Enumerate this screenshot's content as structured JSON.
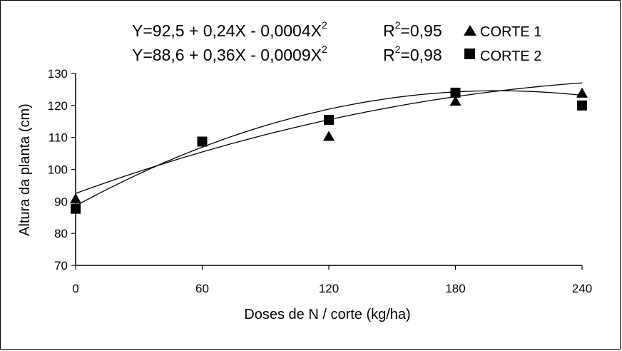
{
  "chart_data": {
    "type": "scatter",
    "xlabel": "Doses de N / corte (kg/ha)",
    "ylabel": "Altura da planta (cm)",
    "xlim": [
      0,
      240
    ],
    "ylim": [
      70,
      130
    ],
    "xticks": [
      "0",
      "60",
      "120",
      "180",
      "240"
    ],
    "yticks": [
      "70",
      "80",
      "90",
      "100",
      "110",
      "120",
      "130"
    ],
    "grid": false,
    "legend_position": "top-right",
    "series": [
      {
        "name": "CORTE 1",
        "marker": "triangle",
        "equation_main": "Y=92,5 + 0,24X - 0,0004X",
        "equation_exp": "2",
        "r2_prefix": "R",
        "r2_exp": "2",
        "r2_value": "=0,95",
        "coef": [
          92.5,
          0.24,
          -0.0004
        ],
        "x": [
          0,
          120,
          180,
          240
        ],
        "y": [
          91,
          110.5,
          121.5,
          124
        ]
      },
      {
        "name": "CORTE 2",
        "marker": "square",
        "equation_main": "Y=88,6 + 0,36X - 0,0009X",
        "equation_exp": "2",
        "r2_prefix": "R",
        "r2_exp": "2",
        "r2_value": "=0,98",
        "coef": [
          88.6,
          0.36,
          -0.0009
        ],
        "x": [
          0,
          60,
          120,
          180,
          240
        ],
        "y": [
          87.7,
          108.7,
          115.5,
          124,
          120
        ]
      }
    ]
  }
}
